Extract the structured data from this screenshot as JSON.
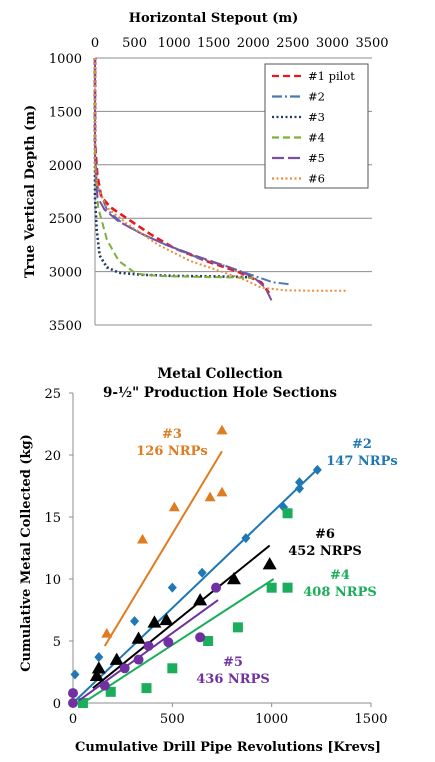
{
  "chart_data": [
    {
      "type": "line",
      "title": "",
      "xlabel": "Horizontal Stepout (m)",
      "ylabel": "True Vertical Depth (m)",
      "x_axis_position": "top",
      "y_inverted": true,
      "xlim": [
        0,
        3500
      ],
      "ylim": [
        1000,
        3500
      ],
      "xticks": [
        "0",
        "500",
        "1000",
        "1500",
        "2000",
        "2500",
        "3000",
        "3500"
      ],
      "yticks": [
        "1000",
        "1500",
        "2000",
        "2500",
        "3000",
        "3500"
      ],
      "grid": "horizontal",
      "legend_position": "top-right",
      "series": [
        {
          "name": "#1 pilot",
          "color": "#e41a1c",
          "dash": "dash",
          "points": [
            [
              0,
              1000
            ],
            [
              0,
              1800
            ],
            [
              30,
              2100
            ],
            [
              80,
              2300
            ],
            [
              200,
              2400
            ],
            [
              400,
              2500
            ],
            [
              700,
              2650
            ],
            [
              1000,
              2780
            ],
            [
              1400,
              2900
            ],
            [
              1800,
              3000
            ],
            [
              2100,
              3100
            ],
            [
              2200,
              3200
            ]
          ]
        },
        {
          "name": "#2",
          "color": "#4a7ab5",
          "dash": "dashdot",
          "points": [
            [
              0,
              1000
            ],
            [
              0,
              1900
            ],
            [
              30,
              2200
            ],
            [
              150,
              2420
            ],
            [
              350,
              2550
            ],
            [
              600,
              2650
            ],
            [
              900,
              2750
            ],
            [
              1300,
              2870
            ],
            [
              1700,
              2960
            ],
            [
              2050,
              3050
            ],
            [
              2250,
              3100
            ],
            [
              2480,
              3120
            ]
          ]
        },
        {
          "name": "#3",
          "color": "#1f3864",
          "dash": "dot",
          "points": [
            [
              0,
              1000
            ],
            [
              0,
              2300
            ],
            [
              20,
              2600
            ],
            [
              60,
              2850
            ],
            [
              150,
              2960
            ],
            [
              300,
              3010
            ],
            [
              600,
              3030
            ],
            [
              1000,
              3040
            ],
            [
              1500,
              3045
            ],
            [
              1850,
              3050
            ],
            [
              2000,
              3055
            ]
          ]
        },
        {
          "name": "#4",
          "color": "#7fae3a",
          "dash": "dash",
          "points": [
            [
              0,
              1000
            ],
            [
              0,
              2000
            ],
            [
              40,
              2400
            ],
            [
              150,
              2700
            ],
            [
              300,
              2900
            ],
            [
              520,
              3020
            ],
            [
              800,
              3040
            ],
            [
              1300,
              3050
            ],
            [
              1800,
              3055
            ],
            [
              2000,
              3060
            ]
          ]
        },
        {
          "name": "#5",
          "color": "#7a4fa0",
          "dash": "longdash",
          "points": [
            [
              0,
              1000
            ],
            [
              0,
              1900
            ],
            [
              30,
              2300
            ],
            [
              120,
              2420
            ],
            [
              300,
              2530
            ],
            [
              600,
              2650
            ],
            [
              900,
              2750
            ],
            [
              1300,
              2860
            ],
            [
              1700,
              2960
            ],
            [
              2000,
              3050
            ],
            [
              2150,
              3150
            ],
            [
              2250,
              3300
            ]
          ]
        },
        {
          "name": "#6",
          "color": "#ee8a3c",
          "dash": "dot",
          "points": [
            [
              0,
              1000
            ],
            [
              0,
              2000
            ],
            [
              30,
              2200
            ],
            [
              150,
              2400
            ],
            [
              400,
              2550
            ],
            [
              800,
              2750
            ],
            [
              1200,
              2900
            ],
            [
              1600,
              3000
            ],
            [
              1900,
              3080
            ],
            [
              2100,
              3150
            ],
            [
              2400,
              3175
            ],
            [
              2800,
              3180
            ],
            [
              3200,
              3180
            ]
          ]
        }
      ]
    },
    {
      "type": "scatter",
      "title": "Metal Collection",
      "subtitle": "9-½\" Production Hole Sections",
      "xlabel": "Cumulative Drill Pipe Revolutions [Krevs]",
      "ylabel": "Cumulative Metal Collected (kg)",
      "xlim": [
        0,
        1500
      ],
      "ylim": [
        0,
        25
      ],
      "xticks": [
        "0",
        "500",
        "1000",
        "1500"
      ],
      "yticks": [
        "0",
        "5",
        "10",
        "15",
        "20",
        "25"
      ],
      "grid": "none",
      "legend_position": "none",
      "series": [
        {
          "name": "#3",
          "label": "126 NRPs",
          "color": "#e07b1f",
          "marker": "triangle",
          "points": [
            [
              170,
              5.6
            ],
            [
              350,
              13.2
            ],
            [
              510,
              15.8
            ],
            [
              690,
              16.6
            ],
            [
              750,
              17.0
            ],
            [
              750,
              22.0
            ]
          ],
          "fit": [
            [
              160,
              4.6
            ],
            [
              750,
              20.3
            ]
          ]
        },
        {
          "name": "#2",
          "label": "147 NRPs",
          "color": "#1f77b4",
          "marker": "diamond",
          "points": [
            [
              10,
              2.3
            ],
            [
              130,
              3.7
            ],
            [
              310,
              6.6
            ],
            [
              500,
              9.3
            ],
            [
              650,
              10.5
            ],
            [
              870,
              13.3
            ],
            [
              1060,
              15.8
            ],
            [
              1140,
              17.3
            ],
            [
              1140,
              17.8
            ],
            [
              1230,
              18.8
            ]
          ],
          "fit": [
            [
              0,
              0
            ],
            [
              1240,
              19.0
            ]
          ]
        },
        {
          "name": "#6",
          "label": "452 NRPS",
          "color": "#000000",
          "marker": "triangle",
          "points": [
            [
              120,
              2.2
            ],
            [
              130,
              2.8
            ],
            [
              220,
              3.5
            ],
            [
              330,
              5.2
            ],
            [
              410,
              6.5
            ],
            [
              470,
              6.7
            ],
            [
              640,
              8.3
            ],
            [
              810,
              10.0
            ],
            [
              990,
              11.2
            ]
          ],
          "fit": [
            [
              100,
              1.2
            ],
            [
              990,
              12.7
            ]
          ]
        },
        {
          "name": "#4",
          "label": "408 NRPS",
          "color": "#1aae5a",
          "marker": "square",
          "points": [
            [
              50,
              0.0
            ],
            [
              190,
              0.9
            ],
            [
              370,
              1.2
            ],
            [
              500,
              2.8
            ],
            [
              680,
              5.0
            ],
            [
              830,
              6.1
            ],
            [
              1000,
              9.3
            ],
            [
              1080,
              9.3
            ],
            [
              1080,
              15.3
            ]
          ],
          "fit": [
            [
              50,
              0.0
            ],
            [
              1010,
              10.0
            ]
          ]
        },
        {
          "name": "#5",
          "label": "436 NRPS",
          "color": "#7030a0",
          "marker": "circle",
          "points": [
            [
              0,
              0.0
            ],
            [
              0,
              0.8
            ],
            [
              160,
              1.4
            ],
            [
              260,
              2.8
            ],
            [
              330,
              3.5
            ],
            [
              380,
              4.6
            ],
            [
              480,
              4.9
            ],
            [
              640,
              5.3
            ],
            [
              720,
              9.3
            ]
          ],
          "fit": [
            [
              30,
              0.2
            ],
            [
              730,
              8.3
            ]
          ]
        }
      ]
    }
  ]
}
